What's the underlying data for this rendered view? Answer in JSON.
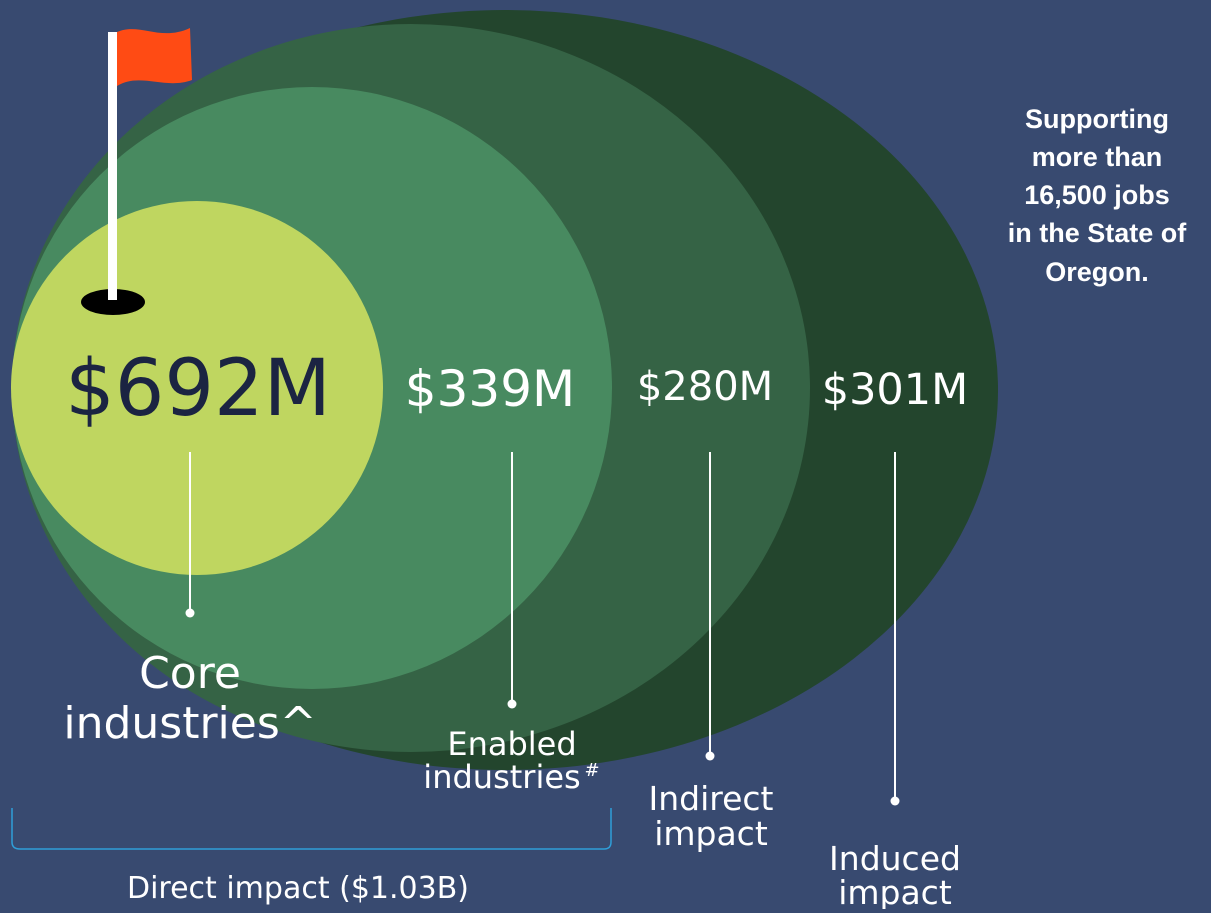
{
  "rings": [
    {
      "value_text": "$692M",
      "label_lines": [
        "Core",
        "industries^"
      ]
    },
    {
      "value_text": "$339M",
      "label_lines": [
        "Enabled",
        "industries"
      ],
      "label_sup": "#"
    },
    {
      "value_text": "$280M",
      "label_lines": [
        "Indirect",
        "impact"
      ]
    },
    {
      "value_text": "$301M",
      "label_lines": [
        "Induced",
        "impact"
      ]
    }
  ],
  "direct_label": "Direct impact ($1.03B)",
  "side_note": {
    "line1": "Supporting",
    "line2": "more than",
    "line3_bold": "16,500",
    "line3_rest": " jobs",
    "line4": "in the State of",
    "line5": "Oregon."
  }
}
